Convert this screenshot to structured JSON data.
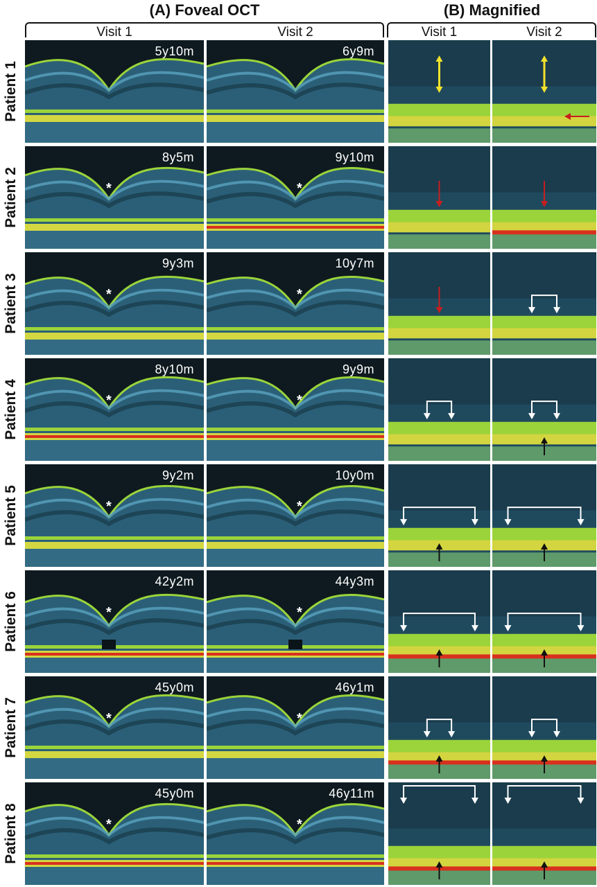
{
  "headers": {
    "a": "(A) Foveal OCT",
    "b": "(B) Magnified",
    "visit1": "Visit 1",
    "visit2": "Visit 2"
  },
  "colors": {
    "background": "#0e1a1f",
    "retina_blue": "#3a7fa0",
    "band_green": "#9bd43a",
    "band_yellow": "#e6e43c",
    "band_red": "#d8301e",
    "arrow_yellow": "#f2e22c",
    "arrow_red": "#c81e1e",
    "arrow_white": "#ffffff",
    "arrow_black": "#111111"
  },
  "patients": [
    {
      "label": "Patient 1",
      "visit1_age": "5y10m",
      "visit2_age": "6y9m",
      "star": false
    },
    {
      "label": "Patient 2",
      "visit1_age": "8y5m",
      "visit2_age": "9y10m",
      "star": true
    },
    {
      "label": "Patient 3",
      "visit1_age": "9y3m",
      "visit2_age": "10y7m",
      "star": true
    },
    {
      "label": "Patient 4",
      "visit1_age": "8y10m",
      "visit2_age": "9y9m",
      "star": true
    },
    {
      "label": "Patient 5",
      "visit1_age": "9y2m",
      "visit2_age": "10y0m",
      "star": true
    },
    {
      "label": "Patient 6",
      "visit1_age": "42y2m",
      "visit2_age": "44y3m",
      "star": true
    },
    {
      "label": "Patient 7",
      "visit1_age": "45y0m",
      "visit2_age": "46y1m",
      "star": true
    },
    {
      "label": "Patient 8",
      "visit1_age": "45y0m",
      "visit2_age": "46y11m",
      "star": true
    }
  ],
  "star_glyph": "*"
}
